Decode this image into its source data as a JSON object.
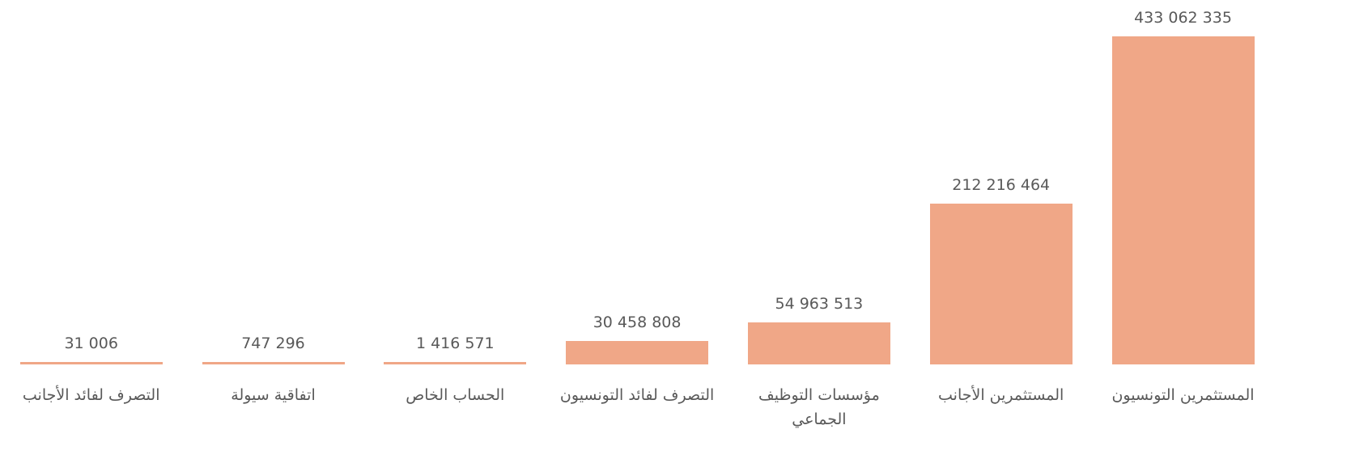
{
  "chart_data": {
    "type": "bar",
    "categories": [
      "المستثمرين التونسيون",
      "المستثمرين الأجانب",
      "مؤسسات التوظيف الجماعي",
      "التصرف لفائد التونسيون",
      "الحساب الخاص",
      "اتفاقية سيولة",
      "التصرف لفائد الأجانب"
    ],
    "values": [
      433062335,
      212216464,
      54963513,
      30458808,
      1416571,
      747296,
      31006
    ],
    "value_labels": [
      "433 062 335",
      "212 216 464",
      "54 963 513",
      "30 458 808",
      "1 416 571",
      "747 296",
      "31 006"
    ],
    "color": "#f0a787"
  }
}
